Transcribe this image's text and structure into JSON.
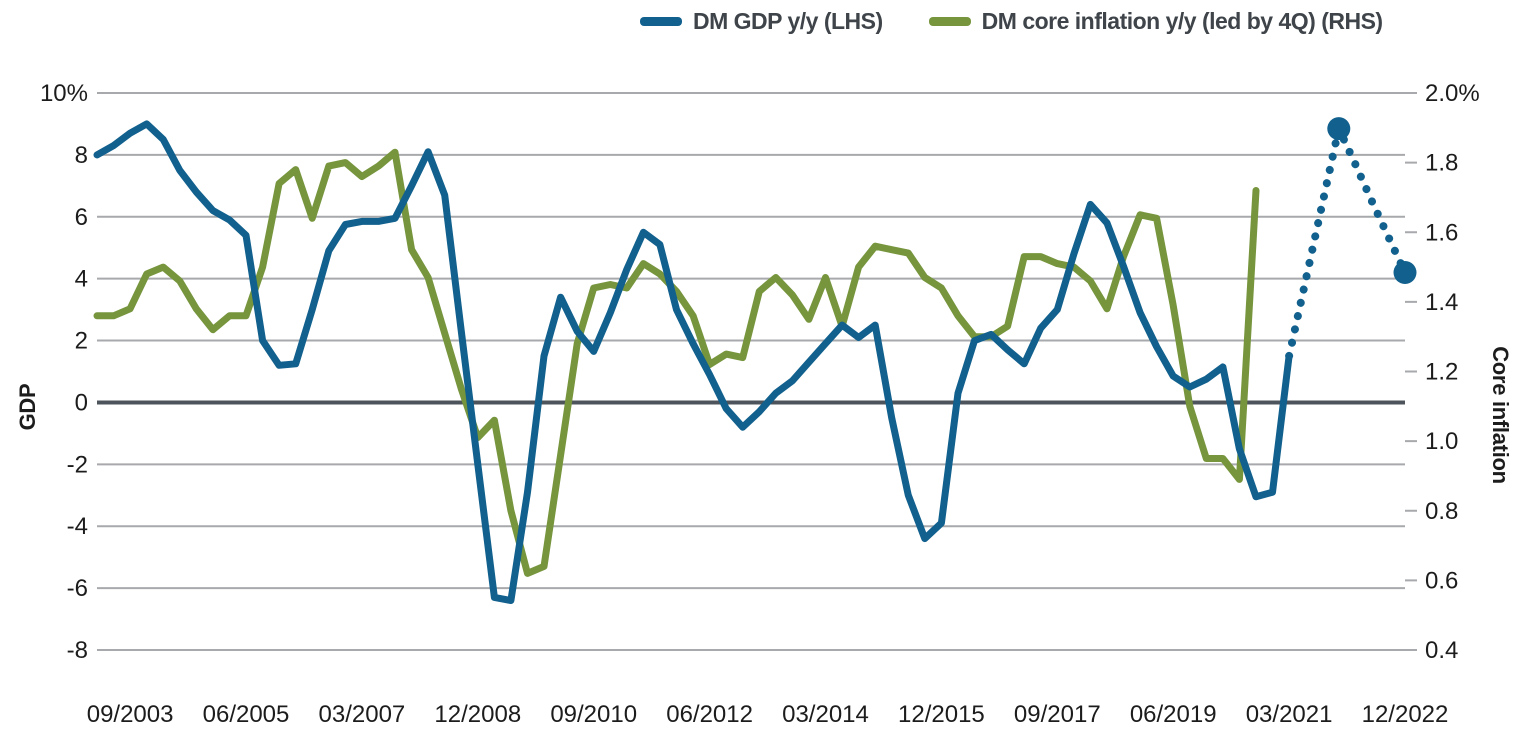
{
  "legend": {
    "items": [
      {
        "label": "DM GDP y/y (LHS)",
        "color": "#11608D"
      },
      {
        "label": "DM core inflation y/y (led by 4Q) (RHS)",
        "color": "#76953D"
      }
    ]
  },
  "left_axis": {
    "title": "GDP",
    "tick_labels": [
      "10%",
      "8",
      "6",
      "4",
      "2",
      "0",
      "-2",
      "-4",
      "-6",
      "-8"
    ]
  },
  "right_axis": {
    "title": "Core inflation",
    "tick_labels": [
      "2.0%",
      "1.8",
      "1.6",
      "1.4",
      "1.2",
      "1.0",
      "0.8",
      "0.6",
      "0.4"
    ]
  },
  "x_axis": {
    "tick_labels": [
      "09/2003",
      "06/2005",
      "03/2007",
      "12/2008",
      "09/2010",
      "06/2012",
      "03/2014",
      "12/2015",
      "09/2017",
      "06/2019",
      "03/2021",
      "12/2022"
    ]
  },
  "colors": {
    "grid": "#A7A9AC",
    "zero_line": "#4D545B",
    "text": "#1C1C1C",
    "legend_text": "#3E4449",
    "background": "#FFFFFF",
    "gdp_line": "#11608D",
    "inflation_line": "#76953D"
  },
  "chart_data": {
    "type": "line",
    "title": "",
    "xlabel": "",
    "ylabel_left": "GDP",
    "ylabel_right": "Core inflation",
    "frequency": "quarterly",
    "x_start": "03/2003",
    "x_end": "12/2022",
    "n_points": 80,
    "first_label_index": 2,
    "label_step": 7,
    "left_ylim": [
      -8,
      10
    ],
    "right_ylim": [
      0.4,
      2.0
    ],
    "grid": "horizontal",
    "zero_line_on_left_axis": true,
    "legend_position": "top-center",
    "series": [
      {
        "name": "DM GDP y/y (LHS)",
        "axis": "left",
        "color": "#11608D",
        "style": "solid-then-dotted-forecast",
        "solid_end_index": 72,
        "marker_indices": [
          75,
          79
        ],
        "values": [
          8.0,
          8.3,
          8.7,
          9.0,
          8.5,
          7.5,
          6.8,
          6.2,
          5.9,
          5.4,
          2.0,
          1.2,
          1.25,
          3.0,
          4.9,
          5.75,
          5.85,
          5.85,
          5.95,
          7.0,
          8.1,
          6.7,
          2.3,
          -2.0,
          -6.3,
          -6.4,
          -2.9,
          1.5,
          3.4,
          2.3,
          1.65,
          2.9,
          4.3,
          5.5,
          5.1,
          3.0,
          1.9,
          0.9,
          -0.2,
          -0.8,
          -0.3,
          0.3,
          0.7,
          1.3,
          1.9,
          2.5,
          2.1,
          2.5,
          -0.5,
          -3.0,
          -4.4,
          -3.9,
          0.3,
          2.0,
          2.2,
          1.7,
          1.25,
          2.4,
          3.0,
          4.8,
          6.4,
          5.8,
          4.4,
          2.9,
          1.8,
          0.85,
          0.5,
          0.75,
          1.15,
          -1.5,
          -3.05,
          -2.9,
          1.5,
          3.95,
          6.4,
          8.85,
          7.7,
          6.5,
          5.35,
          4.2
        ]
      },
      {
        "name": "DM core inflation y/y (led by 4Q) (RHS)",
        "axis": "right",
        "color": "#76953D",
        "style": "solid",
        "values": [
          1.36,
          1.36,
          1.38,
          1.48,
          1.5,
          1.46,
          1.38,
          1.32,
          1.36,
          1.36,
          1.5,
          1.74,
          1.78,
          1.64,
          1.79,
          1.8,
          1.76,
          1.79,
          1.83,
          1.55,
          1.47,
          1.31,
          1.15,
          1.01,
          1.06,
          0.8,
          0.62,
          0.64,
          0.96,
          1.28,
          1.44,
          1.45,
          1.44,
          1.51,
          1.48,
          1.43,
          1.36,
          1.22,
          1.25,
          1.24,
          1.43,
          1.47,
          1.42,
          1.35,
          1.47,
          1.33,
          1.5,
          1.56,
          1.55,
          1.54,
          1.47,
          1.44,
          1.36,
          1.3,
          1.3,
          1.33,
          1.53,
          1.53,
          1.51,
          1.5,
          1.46,
          1.38,
          1.53,
          1.65,
          1.64,
          1.39,
          1.1,
          0.95,
          0.95,
          0.89,
          1.72
        ]
      }
    ]
  }
}
